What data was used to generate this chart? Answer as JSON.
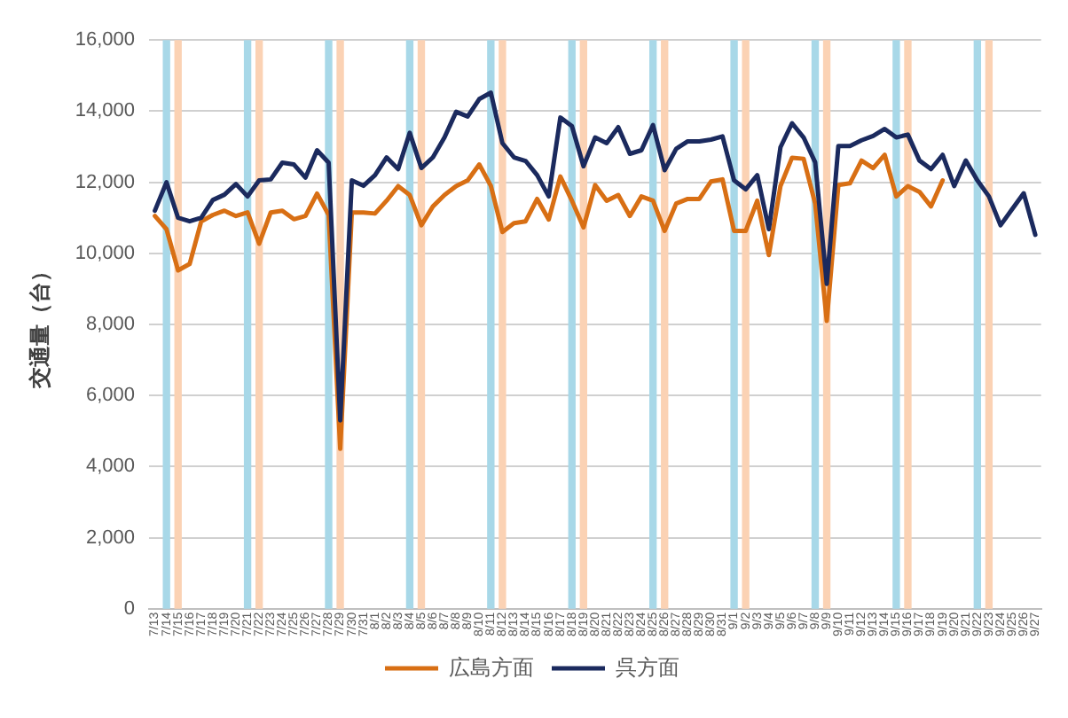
{
  "chart_data": {
    "type": "line",
    "ylabel": "交通量（台）",
    "categories": [
      "7/13",
      "7/14",
      "7/15",
      "7/16",
      "7/17",
      "7/18",
      "7/19",
      "7/20",
      "7/21",
      "7/22",
      "7/23",
      "7/24",
      "7/25",
      "7/26",
      "7/27",
      "7/28",
      "7/29",
      "7/30",
      "7/31",
      "8/1",
      "8/2",
      "8/3",
      "8/4",
      "8/5",
      "8/6",
      "8/7",
      "8/8",
      "8/9",
      "8/10",
      "8/11",
      "8/12",
      "8/13",
      "8/14",
      "8/15",
      "8/16",
      "8/17",
      "8/18",
      "8/19",
      "8/20",
      "8/21",
      "8/22",
      "8/23",
      "8/24",
      "8/25",
      "8/26",
      "8/27",
      "8/28",
      "8/29",
      "8/30",
      "8/31",
      "9/1",
      "9/2",
      "9/3",
      "9/4",
      "9/5",
      "9/6",
      "9/7",
      "9/8",
      "9/9",
      "9/10",
      "9/11",
      "9/12",
      "9/13",
      "9/14",
      "9/15",
      "9/16",
      "9/17",
      "9/18",
      "9/19",
      "9/20",
      "9/21",
      "9/22",
      "9/23",
      "9/24",
      "9/25",
      "9/26",
      "9/27"
    ],
    "series": [
      {
        "name": "広島方面",
        "color": "#d86f14",
        "values": [
          11050,
          10680,
          9520,
          9700,
          10900,
          11080,
          11200,
          11050,
          11150,
          10270,
          11150,
          11200,
          10960,
          11050,
          11680,
          11080,
          4500,
          11150,
          11150,
          11120,
          11480,
          11890,
          11640,
          10790,
          11320,
          11640,
          11890,
          12050,
          12500,
          11900,
          10600,
          10850,
          10900,
          11530,
          10950,
          12160,
          11480,
          10730,
          11920,
          11480,
          11640,
          11050,
          11600,
          11480,
          10630,
          11400,
          11530,
          11530,
          12020,
          12080,
          10630,
          10630,
          11480,
          9950,
          11890,
          12690,
          12660,
          11400,
          8100,
          11920,
          11970,
          12610,
          12400,
          12770,
          11600,
          11890,
          11730,
          11320,
          12050,
          null,
          null,
          null,
          null,
          null,
          null,
          null,
          null
        ]
      },
      {
        "name": "呉方面",
        "color": "#1b2a5e",
        "values": [
          11200,
          12000,
          11000,
          10900,
          11000,
          11500,
          11650,
          11950,
          11600,
          12050,
          12080,
          12550,
          12500,
          12130,
          12900,
          12550,
          5300,
          12050,
          11900,
          12200,
          12700,
          12370,
          13390,
          12400,
          12700,
          13260,
          13980,
          13850,
          14340,
          14520,
          13100,
          12700,
          12600,
          12200,
          11600,
          13820,
          13580,
          12450,
          13260,
          13100,
          13550,
          12800,
          12900,
          13610,
          12340,
          12940,
          13150,
          13150,
          13200,
          13290,
          12050,
          11800,
          12200,
          10680,
          12980,
          13660,
          13260,
          12560,
          9140,
          13020,
          13020,
          13180,
          13300,
          13500,
          13260,
          13340,
          12610,
          12370,
          12770,
          11890,
          12610,
          12050,
          11600,
          10790,
          11240,
          11690,
          10520
        ]
      }
    ],
    "ylim": [
      0,
      16000
    ],
    "yticks": [
      {
        "value": 0,
        "label": "0"
      },
      {
        "value": 2000,
        "label": "2,000"
      },
      {
        "value": 4000,
        "label": "4,000"
      },
      {
        "value": 6000,
        "label": "6,000"
      },
      {
        "value": 8000,
        "label": "8,000"
      },
      {
        "value": 10000,
        "label": "10,000"
      },
      {
        "value": 12000,
        "label": "12,000"
      },
      {
        "value": 14000,
        "label": "14,000"
      },
      {
        "value": 16000,
        "label": "16,000"
      }
    ],
    "grid": "y",
    "legend": "bottom",
    "marker": "none",
    "line_style": "solid",
    "bands": [
      {
        "axis": "x",
        "from": "7/14",
        "to": "7/14",
        "color": "#a8d8e8"
      },
      {
        "axis": "x",
        "from": "7/15",
        "to": "7/15",
        "color": "#fbd2b4"
      },
      {
        "axis": "x",
        "from": "7/21",
        "to": "7/21",
        "color": "#a8d8e8"
      },
      {
        "axis": "x",
        "from": "7/22",
        "to": "7/22",
        "color": "#fbd2b4"
      },
      {
        "axis": "x",
        "from": "7/28",
        "to": "7/28",
        "color": "#a8d8e8"
      },
      {
        "axis": "x",
        "from": "7/29",
        "to": "7/29",
        "color": "#fbd2b4"
      },
      {
        "axis": "x",
        "from": "8/4",
        "to": "8/4",
        "color": "#a8d8e8"
      },
      {
        "axis": "x",
        "from": "8/5",
        "to": "8/5",
        "color": "#fbd2b4"
      },
      {
        "axis": "x",
        "from": "8/11",
        "to": "8/11",
        "color": "#a8d8e8"
      },
      {
        "axis": "x",
        "from": "8/12",
        "to": "8/12",
        "color": "#fbd2b4"
      },
      {
        "axis": "x",
        "from": "8/18",
        "to": "8/18",
        "color": "#a8d8e8"
      },
      {
        "axis": "x",
        "from": "8/19",
        "to": "8/19",
        "color": "#fbd2b4"
      },
      {
        "axis": "x",
        "from": "8/25",
        "to": "8/25",
        "color": "#a8d8e8"
      },
      {
        "axis": "x",
        "from": "8/26",
        "to": "8/26",
        "color": "#fbd2b4"
      },
      {
        "axis": "x",
        "from": "9/1",
        "to": "9/1",
        "color": "#a8d8e8"
      },
      {
        "axis": "x",
        "from": "9/2",
        "to": "9/2",
        "color": "#fbd2b4"
      },
      {
        "axis": "x",
        "from": "9/8",
        "to": "9/8",
        "color": "#a8d8e8"
      },
      {
        "axis": "x",
        "from": "9/9",
        "to": "9/9",
        "color": "#fbd2b4"
      },
      {
        "axis": "x",
        "from": "9/15",
        "to": "9/15",
        "color": "#a8d8e8"
      },
      {
        "axis": "x",
        "from": "9/16",
        "to": "9/16",
        "color": "#fbd2b4"
      },
      {
        "axis": "x",
        "from": "9/22",
        "to": "9/22",
        "color": "#a8d8e8"
      },
      {
        "axis": "x",
        "from": "9/23",
        "to": "9/23",
        "color": "#fbd2b4"
      }
    ]
  }
}
